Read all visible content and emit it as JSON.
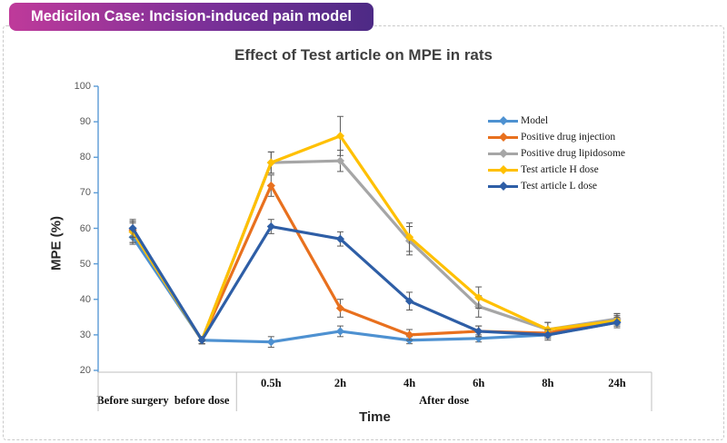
{
  "banner": {
    "label": "Medicilon Case: Incision-induced pain model",
    "gradient_left": "#BF3A9A",
    "gradient_right": "#4D2A85"
  },
  "chart_data": {
    "type": "line",
    "title": "Effect of Test article on MPE in rats",
    "xlabel": "Time",
    "ylabel": "MPE (%)",
    "ylim": [
      20,
      100
    ],
    "yticks": [
      20,
      30,
      40,
      50,
      60,
      70,
      80,
      90,
      100
    ],
    "grid": false,
    "legend_position": "inside-right",
    "axis_color": "#5B9BD5",
    "x_axis_line_color": "#BFBFBF",
    "error_bar_color": "#595959",
    "marker_shape": "diamond",
    "categories": [
      "Before surgery",
      "before dose",
      "0.5h",
      "2h",
      "4h",
      "6h",
      "8h",
      "24h"
    ],
    "x_groups": [
      {
        "text": "Before surgery",
        "from": 0,
        "to": 0
      },
      {
        "text": "before dose",
        "from": 1,
        "to": 1
      },
      {
        "text": "After dose",
        "from": 2,
        "to": 7
      }
    ],
    "series": [
      {
        "name": "Model",
        "color": "#4E91D1",
        "values": [
          57.5,
          28.5,
          28,
          31,
          28.5,
          29,
          30,
          33.5
        ],
        "errors": [
          2,
          1,
          1.5,
          1.5,
          1,
          1,
          1,
          1
        ]
      },
      {
        "name": "Positive drug injection",
        "color": "#E8701E",
        "values": [
          59.5,
          28.5,
          72,
          37.5,
          30,
          31,
          30.5,
          34.5
        ],
        "errors": [
          2,
          1,
          3,
          2.5,
          1.5,
          1.5,
          1,
          1.5
        ]
      },
      {
        "name": "Positive drug lipidosome",
        "color": "#A6A6A6",
        "values": [
          59,
          28.5,
          78.5,
          79,
          56.5,
          38,
          31.5,
          34.5
        ],
        "errors": [
          3,
          1,
          3,
          3,
          4,
          3,
          2,
          1.5
        ]
      },
      {
        "name": "Test article H dose",
        "color": "#FFC000",
        "values": [
          59,
          28.5,
          78.5,
          86,
          57.5,
          40.5,
          31.5,
          34
        ],
        "errors": [
          3,
          1,
          3,
          5.5,
          4,
          3,
          2,
          1.5
        ]
      },
      {
        "name": "Test article L dose",
        "color": "#2E5EA6",
        "values": [
          60,
          28.5,
          60.5,
          57,
          39.5,
          31,
          30,
          33.5
        ],
        "errors": [
          2.5,
          1,
          2,
          2,
          2.5,
          1.5,
          1.5,
          1.5
        ]
      }
    ]
  }
}
